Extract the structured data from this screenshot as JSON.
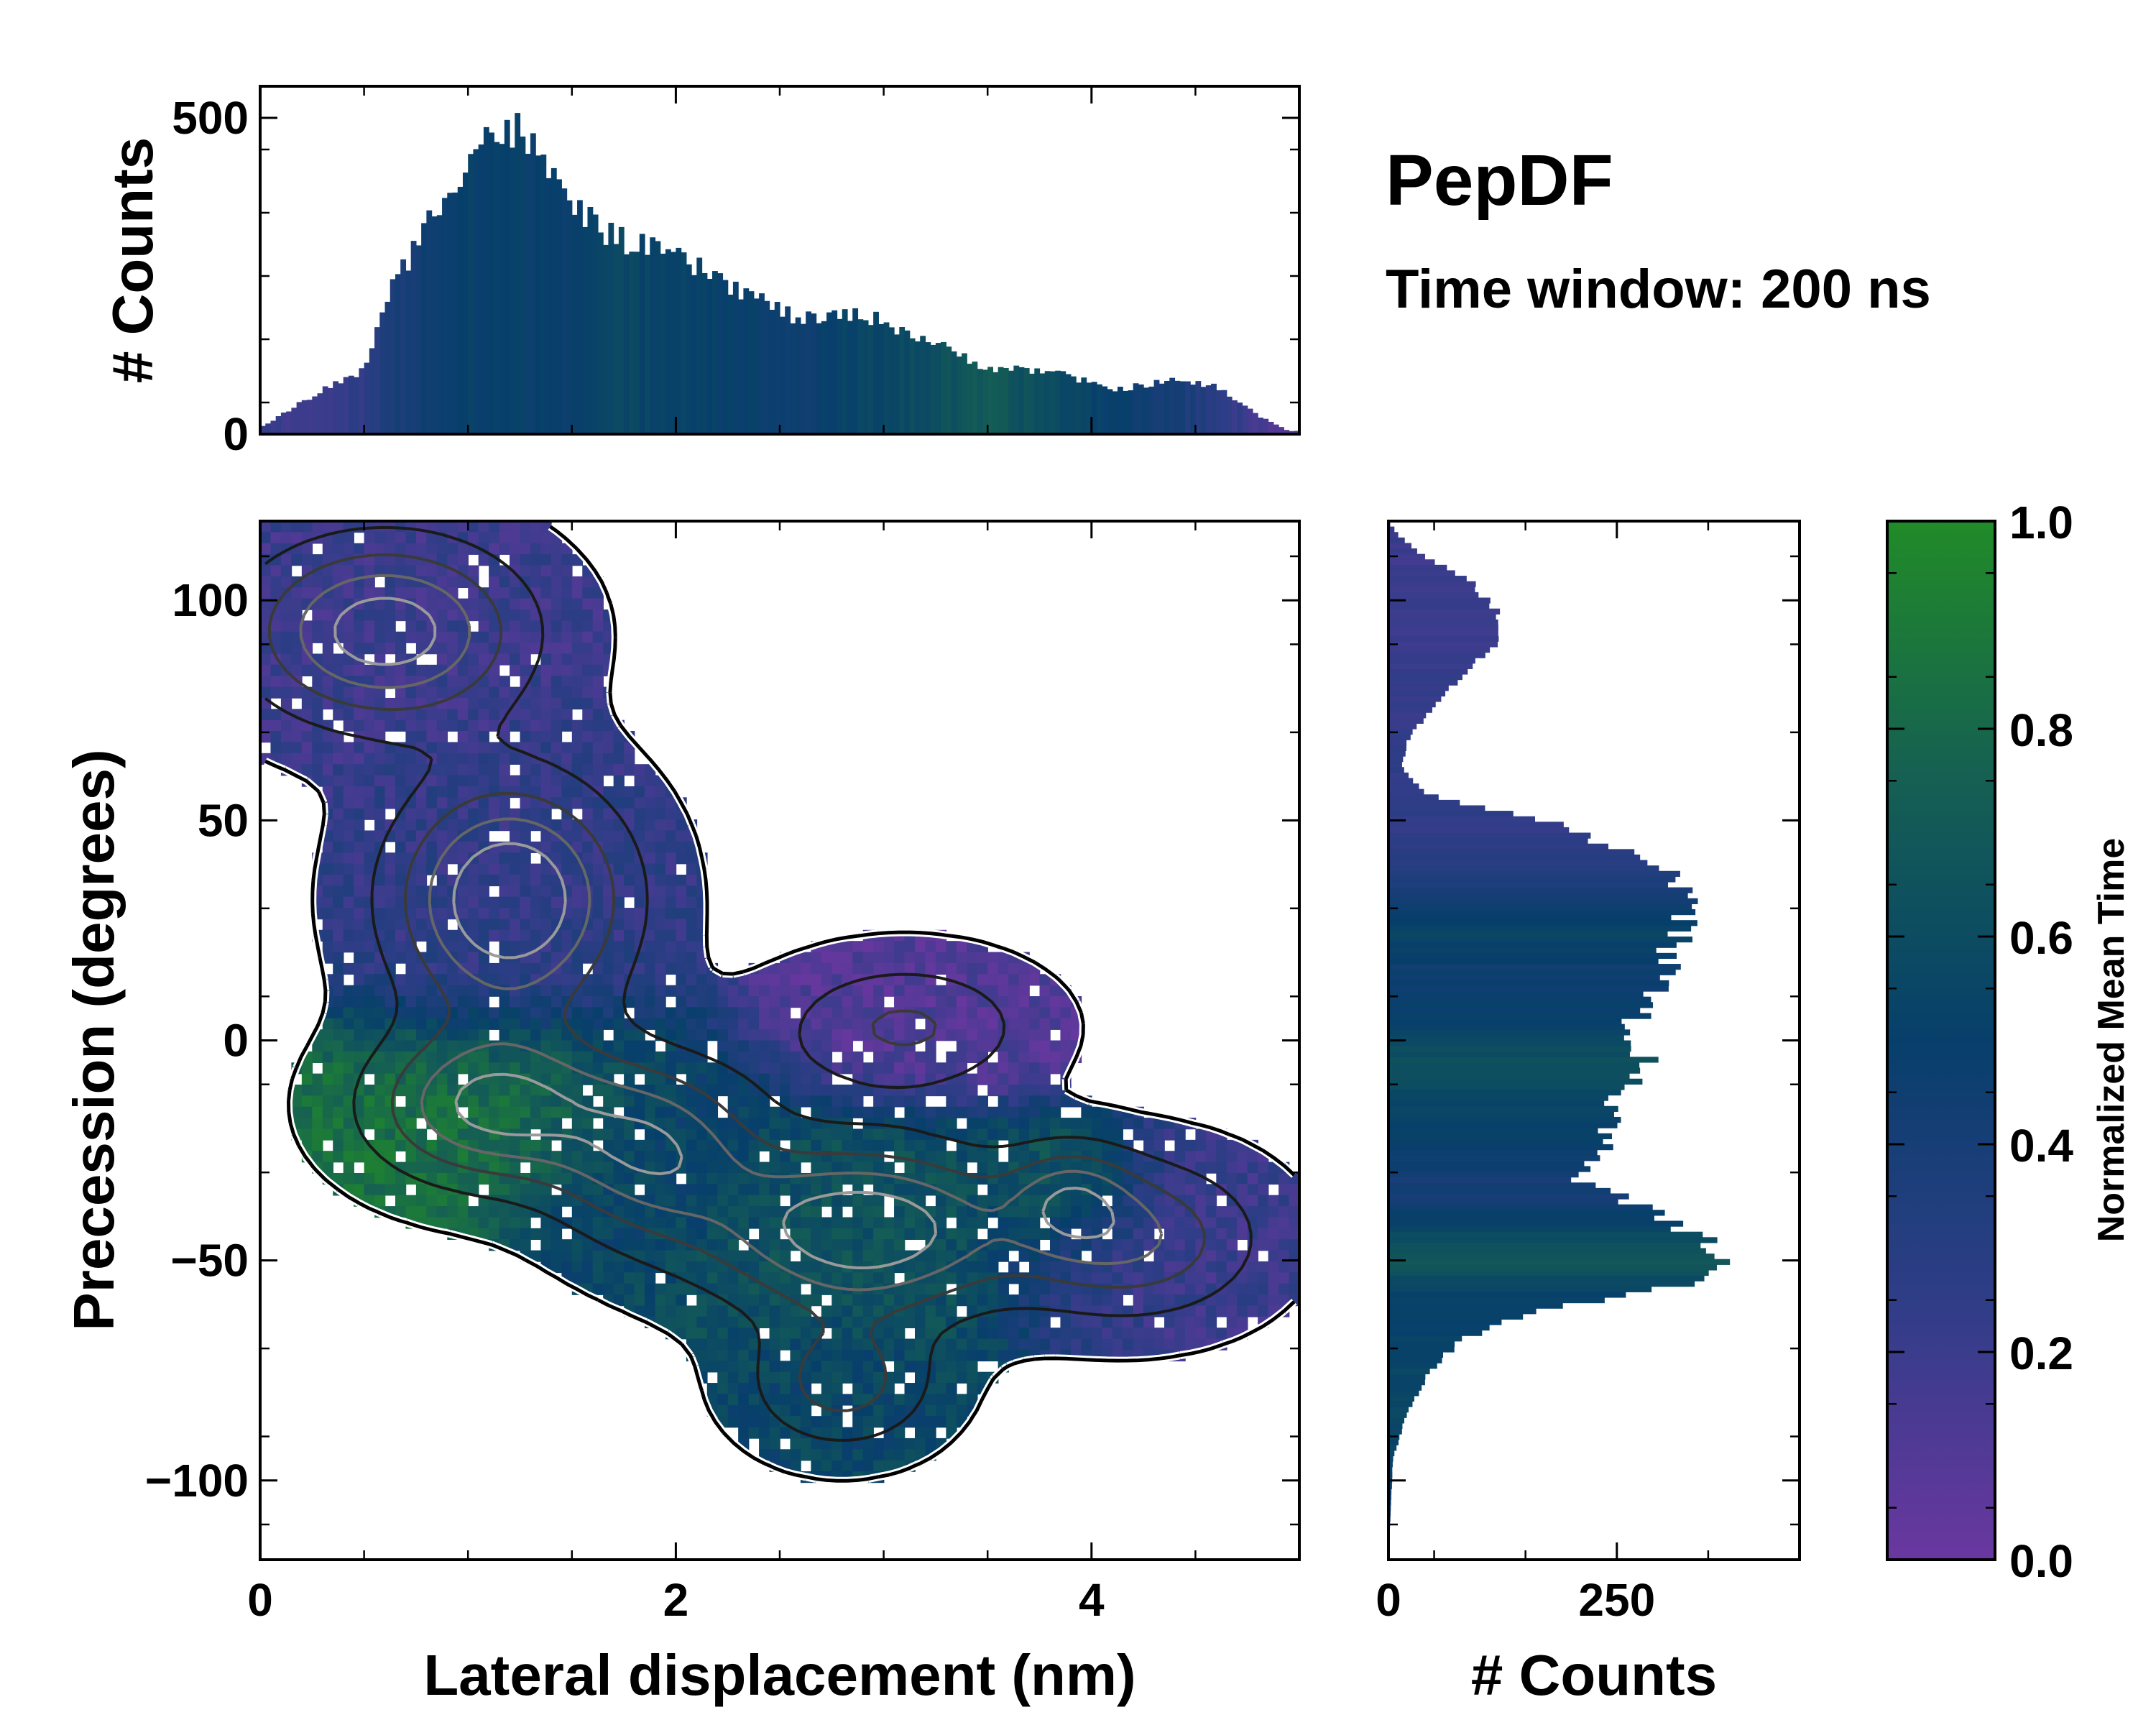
{
  "chart_data": [
    {
      "type": "heatmap",
      "name": "main-joint-distribution",
      "xlabel": "Lateral displacement (nm)",
      "ylabel": "Precession (degrees)",
      "xlim": [
        0,
        5
      ],
      "ylim": [
        -118,
        118
      ],
      "xticks": [
        "0",
        "2",
        "4"
      ],
      "yticks": [
        "−100",
        "−50",
        "0",
        "50",
        "100"
      ],
      "xtick_values": [
        0,
        2,
        4
      ],
      "ytick_values": [
        -100,
        -50,
        0,
        50,
        100
      ],
      "colormap": [
        "#6a37a0",
        "#2f3d87",
        "#073f6b",
        "#155f53",
        "#218b28"
      ],
      "clusters": [
        {
          "cx": 0.6,
          "cy": 93,
          "sx": 0.45,
          "sy": 14,
          "w": 0.9,
          "t": 0.2
        },
        {
          "cx": 1.2,
          "cy": 32,
          "sx": 0.38,
          "sy": 18,
          "w": 1.0,
          "t": 0.25
        },
        {
          "cx": 1.1,
          "cy": -15,
          "sx": 0.4,
          "sy": 12,
          "w": 0.8,
          "t": 0.85
        },
        {
          "cx": 1.9,
          "cy": -25,
          "sx": 0.35,
          "sy": 14,
          "w": 0.7,
          "t": 0.5
        },
        {
          "cx": 2.9,
          "cy": -43,
          "sx": 0.5,
          "sy": 13,
          "w": 0.95,
          "t": 0.65
        },
        {
          "cx": 2.8,
          "cy": -78,
          "sx": 0.3,
          "sy": 10,
          "w": 0.5,
          "t": 0.55
        },
        {
          "cx": 3.1,
          "cy": 3,
          "sx": 0.4,
          "sy": 10,
          "w": 0.45,
          "t": 0.1
        },
        {
          "cx": 4.2,
          "cy": -45,
          "sx": 0.4,
          "sy": 12,
          "w": 0.6,
          "t": 0.2
        },
        {
          "cx": 3.9,
          "cy": -35,
          "sx": 0.2,
          "sy": 8,
          "w": 0.4,
          "t": 0.9
        }
      ]
    },
    {
      "type": "bar",
      "name": "top-marginal-histogram",
      "ylabel": "# Counts",
      "yticks": [
        "0",
        "500"
      ],
      "ytick_values": [
        0,
        500
      ],
      "ylim": [
        0,
        550
      ],
      "x_range": [
        0,
        5
      ],
      "profile_x": [
        0,
        0.3,
        0.5,
        0.6,
        0.8,
        1.0,
        1.1,
        1.25,
        1.45,
        1.7,
        2.0,
        2.3,
        2.6,
        2.9,
        3.2,
        3.5,
        3.8,
        4.1,
        4.4,
        4.6,
        4.8,
        4.95
      ],
      "profile_counts": [
        10,
        70,
        100,
        210,
        330,
        440,
        475,
        480,
        380,
        310,
        280,
        230,
        180,
        190,
        150,
        105,
        100,
        70,
        85,
        75,
        30,
        5
      ],
      "profile_t": [
        0.2,
        0.2,
        0.25,
        0.35,
        0.45,
        0.5,
        0.5,
        0.5,
        0.5,
        0.55,
        0.55,
        0.5,
        0.45,
        0.55,
        0.6,
        0.7,
        0.6,
        0.5,
        0.4,
        0.3,
        0.15,
        0.1
      ]
    },
    {
      "type": "bar",
      "name": "right-marginal-histogram",
      "xlabel": "# Counts",
      "xticks": [
        "0",
        "250"
      ],
      "xtick_values": [
        0,
        250
      ],
      "xlim": [
        0,
        450
      ],
      "y_range": [
        -118,
        118
      ],
      "profile_y": [
        -118,
        -95,
        -85,
        -75,
        -68,
        -62,
        -56,
        -50,
        -44,
        -38,
        -32,
        -25,
        -15,
        -5,
        5,
        15,
        25,
        33,
        40,
        45,
        50,
        56,
        62,
        68,
        75,
        82,
        88,
        93,
        98,
        104,
        110,
        115,
        118
      ],
      "profile_counts": [
        0,
        5,
        20,
        45,
        80,
        150,
        320,
        360,
        340,
        280,
        210,
        240,
        245,
        280,
        270,
        300,
        320,
        330,
        300,
        230,
        170,
        40,
        15,
        20,
        45,
        75,
        110,
        125,
        120,
        90,
        40,
        10,
        0
      ],
      "profile_t": [
        0.3,
        0.55,
        0.55,
        0.55,
        0.55,
        0.5,
        0.55,
        0.7,
        0.6,
        0.45,
        0.4,
        0.5,
        0.55,
        0.65,
        0.5,
        0.45,
        0.55,
        0.4,
        0.3,
        0.25,
        0.25,
        0.25,
        0.25,
        0.25,
        0.22,
        0.22,
        0.2,
        0.2,
        0.2,
        0.2,
        0.2,
        0.2,
        0.2
      ]
    },
    {
      "type": "heatmap",
      "name": "colorbar",
      "label": "Normalized Mean Time",
      "ticks": [
        "0.0",
        "0.2",
        "0.4",
        "0.6",
        "0.8",
        "1.0"
      ],
      "tick_values": [
        0.0,
        0.2,
        0.4,
        0.6,
        0.8,
        1.0
      ],
      "range": [
        0,
        1
      ]
    }
  ],
  "annotations": {
    "title": "PepDF",
    "subtitle": "Time window: 200 ns"
  }
}
